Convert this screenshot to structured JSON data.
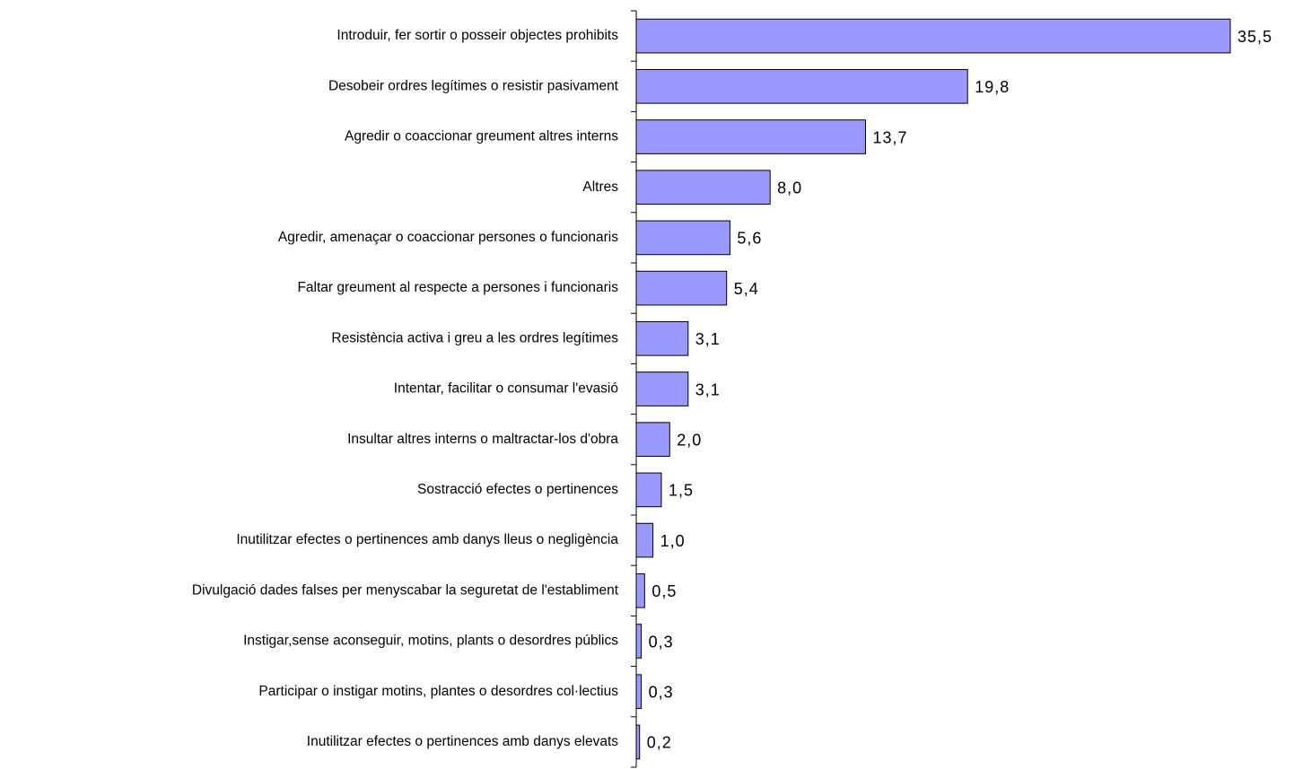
{
  "chart_data": {
    "type": "barh",
    "categories": [
      "Introduir, fer sortir o posseir objectes prohibits",
      "Desobeir ordres legítimes o resistir pasivament",
      "Agredir o coaccionar greument altres interns",
      "Altres",
      "Agredir, amenaçar o coaccionar persones o funcionaris",
      "Faltar greument al respecte a persones i funcionaris",
      "Resistència activa i greu a les ordres legítimes",
      "Intentar, facilitar o consumar l'evasió",
      "Insultar altres interns o maltractar-los d'obra",
      "Sostracció efectes o pertinences",
      "Inutilitzar efectes o pertinences amb danys lleus o negligència",
      "Divulgació dades falses per menyscabar la seguretat de l'establiment",
      "Instigar,sense aconseguir, motins, plants o desordres públics",
      "Participar o instigar motins, plantes o desordres col·lectius",
      "Inutilitzar efectes o pertinences amb danys elevats"
    ],
    "values": [
      35.5,
      19.8,
      13.7,
      8.0,
      5.6,
      5.4,
      3.1,
      3.1,
      2.0,
      1.5,
      1.0,
      0.5,
      0.3,
      0.3,
      0.2
    ],
    "value_labels": [
      "35,5",
      "19,8",
      "13,7",
      "8,0",
      "5,6",
      "5,4",
      "3,1",
      "3,1",
      "2,0",
      "1,5",
      "1,0",
      "0,5",
      "0,3",
      "0,3",
      "0,2"
    ],
    "color": "#9999ff"
  }
}
